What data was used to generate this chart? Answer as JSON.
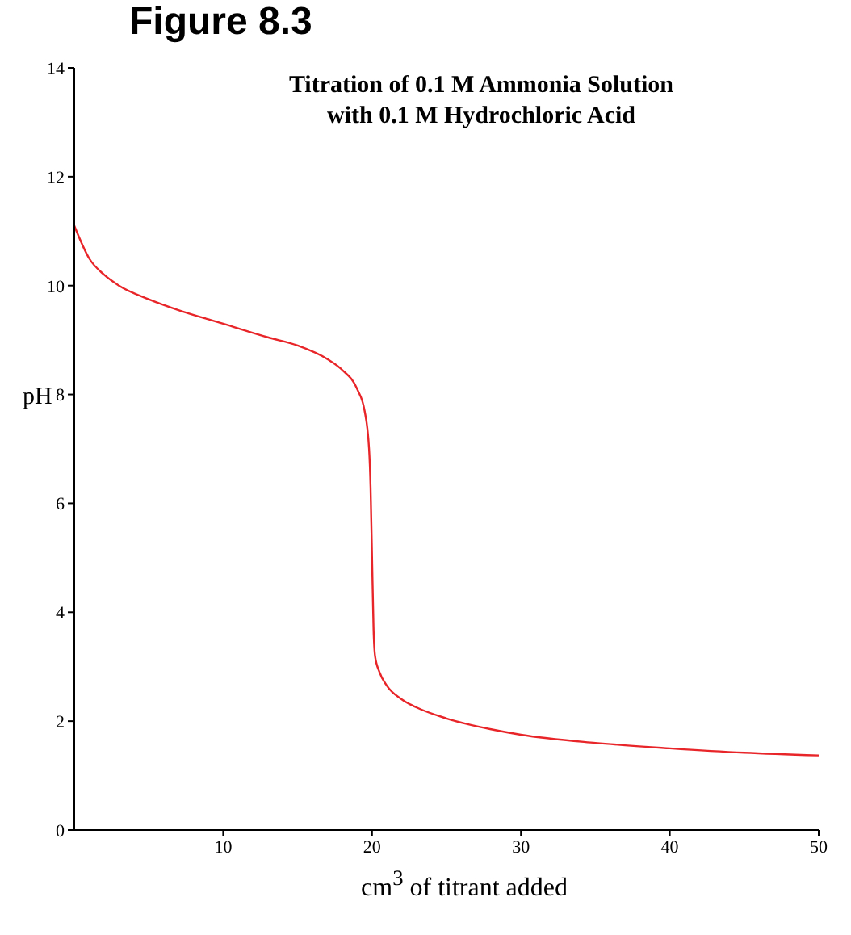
{
  "chart_data": {
    "type": "line",
    "title": "Figure 8.3",
    "subtitle": "Titration of 0.1 M Ammonia Solution\nwith 0.1 M Hydrochloric Acid",
    "xlabel": "cm$^{3}$ of titrant added",
    "ylabel": "pH",
    "x": [
      0,
      1,
      2,
      3,
      5,
      7,
      10,
      13,
      15,
      17,
      18,
      19,
      19.5,
      19.8,
      19.9,
      20,
      20.1,
      20.2,
      20.5,
      21,
      22,
      23,
      25,
      28,
      30,
      35,
      40,
      45,
      50
    ],
    "series": [
      {
        "color": "#e8262a",
        "values": [
          11.1,
          10.5,
          10.2,
          10.0,
          9.75,
          9.55,
          9.3,
          9.05,
          8.9,
          8.65,
          8.45,
          8.1,
          7.7,
          7.0,
          6.3,
          5.0,
          3.7,
          3.2,
          2.9,
          2.65,
          2.4,
          2.25,
          2.05,
          1.85,
          1.75,
          1.6,
          1.5,
          1.42,
          1.37
        ]
      }
    ],
    "xlim": [
      0,
      50
    ],
    "xticks": [
      10,
      20,
      30,
      40,
      50
    ],
    "ylim": [
      0,
      14
    ],
    "yticks": [
      0,
      2,
      4,
      6,
      8,
      10,
      12,
      14
    ],
    "marker": "none",
    "line_style": "solid"
  }
}
